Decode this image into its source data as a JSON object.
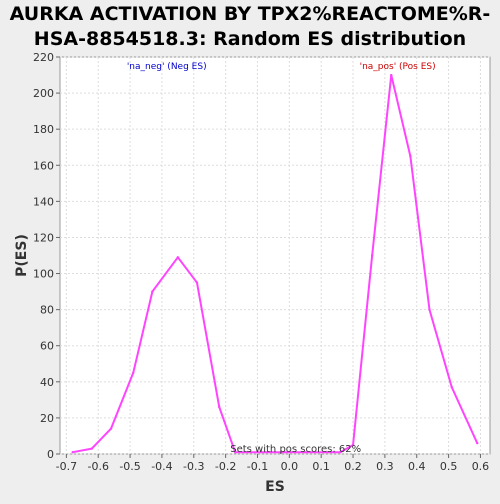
{
  "chart_data": {
    "type": "line",
    "title_lines": [
      "AURKA ACTIVATION BY TPX2%REACTOME%R-",
      "HSA-8854518.3: Random ES distribution"
    ],
    "xlabel": "ES",
    "ylabel": "P(ES)",
    "xlim": [
      -0.72,
      0.63
    ],
    "ylim": [
      0,
      220
    ],
    "x_ticks": [
      -0.7,
      -0.6,
      -0.5,
      -0.4,
      -0.3,
      -0.2,
      -0.1,
      0.0,
      0.1,
      0.2,
      0.3,
      0.4,
      0.5,
      0.6
    ],
    "x_tick_labels": [
      "-0.7",
      "-0.6",
      "-0.5",
      "-0.4",
      "-0.3",
      "-0.2",
      "-0.1",
      "0.0",
      "0.1",
      "0.2",
      "0.3",
      "0.4",
      "0.5",
      "0.6"
    ],
    "y_ticks": [
      0,
      20,
      40,
      60,
      80,
      100,
      120,
      140,
      160,
      180,
      200,
      220
    ],
    "y_tick_labels": [
      "0",
      "20",
      "40",
      "60",
      "80",
      "100",
      "120",
      "140",
      "160",
      "180",
      "200",
      "220"
    ],
    "grid": true,
    "series": [
      {
        "color": "#ff44ff",
        "x": [
          -0.68,
          -0.62,
          -0.56,
          -0.49,
          -0.43,
          -0.35,
          -0.29,
          -0.22,
          -0.17,
          0.16,
          0.2,
          0.26,
          0.32,
          0.38,
          0.44,
          0.51,
          0.59
        ],
        "y": [
          1,
          3,
          14,
          45,
          90,
          109,
          95,
          26,
          1,
          1,
          5,
          110,
          210,
          165,
          80,
          37,
          6
        ]
      }
    ],
    "annotations": [
      {
        "text": "'na_neg' (Neg ES)",
        "color": "#0000cc"
      },
      {
        "text": "'na_pos' (Pos ES)",
        "color": "#cc0000"
      },
      {
        "text": "Sets with pos scores: 62%",
        "color": "#333333"
      }
    ]
  }
}
